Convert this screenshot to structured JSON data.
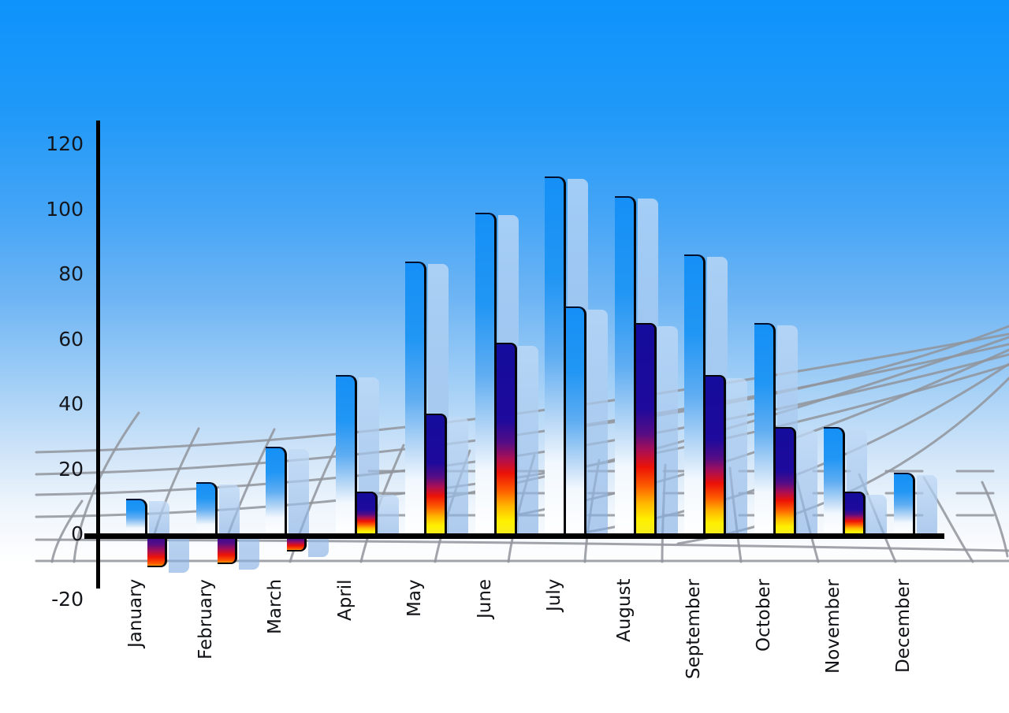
{
  "chart_data": {
    "type": "bar",
    "title": "",
    "xlabel": "",
    "ylabel": "",
    "legend": "none",
    "grid": "curved perspective mesh background",
    "ylim": [
      -20,
      120
    ],
    "y_ticks": [
      120,
      100,
      80,
      60,
      40,
      20,
      0,
      -20
    ],
    "categories": [
      "January",
      "February",
      "March",
      "April",
      "May",
      "June",
      "July",
      "August",
      "September",
      "October",
      "November",
      "December"
    ],
    "series": [
      {
        "name": "series-1-blue-gradient",
        "values": [
          11,
          16,
          27,
          49,
          84,
          99,
          110,
          104,
          86,
          65,
          33,
          19
        ]
      },
      {
        "name": "series-2-multicolor",
        "values": [
          -10,
          -9,
          -5,
          13,
          37,
          59,
          70,
          65,
          49,
          33,
          13,
          null
        ]
      }
    ],
    "months": [
      {
        "label": "January",
        "primary": 11,
        "secondary": -10,
        "secondary_style": "hot"
      },
      {
        "label": "February",
        "primary": 16,
        "secondary": -9,
        "secondary_style": "hot"
      },
      {
        "label": "March",
        "primary": 27,
        "secondary": -5,
        "secondary_style": "hot"
      },
      {
        "label": "April",
        "primary": 49,
        "secondary": 13,
        "secondary_style": "hot"
      },
      {
        "label": "May",
        "primary": 84,
        "secondary": 37,
        "secondary_style": "hot"
      },
      {
        "label": "June",
        "primary": 99,
        "secondary": 59,
        "secondary_style": "hot"
      },
      {
        "label": "July",
        "primary": 110,
        "secondary": 70,
        "secondary_style": "cool"
      },
      {
        "label": "August",
        "primary": 104,
        "secondary": 65,
        "secondary_style": "hot"
      },
      {
        "label": "September",
        "primary": 86,
        "secondary": 49,
        "secondary_style": "hot"
      },
      {
        "label": "October",
        "primary": 65,
        "secondary": 33,
        "secondary_style": "hot"
      },
      {
        "label": "November",
        "primary": 33,
        "secondary": 13,
        "secondary_style": "hot"
      },
      {
        "label": "December",
        "primary": 19,
        "secondary": null,
        "secondary_style": "hot"
      }
    ],
    "colors": {
      "sky_top": "#0d93fc",
      "sky_bottom": "#ffffff",
      "bar_blue_top": "#1590f6",
      "bar_blue_bottom": "#ffffff",
      "hot_top_navy": "#140c9c",
      "hot_mid_red": "#ec1207",
      "hot_bottom_yellow": "#fff000",
      "echo_bar": "#a9ccf0",
      "mesh_line": "#90949b",
      "axis_line": "#000000",
      "label_text": "#101216"
    }
  }
}
